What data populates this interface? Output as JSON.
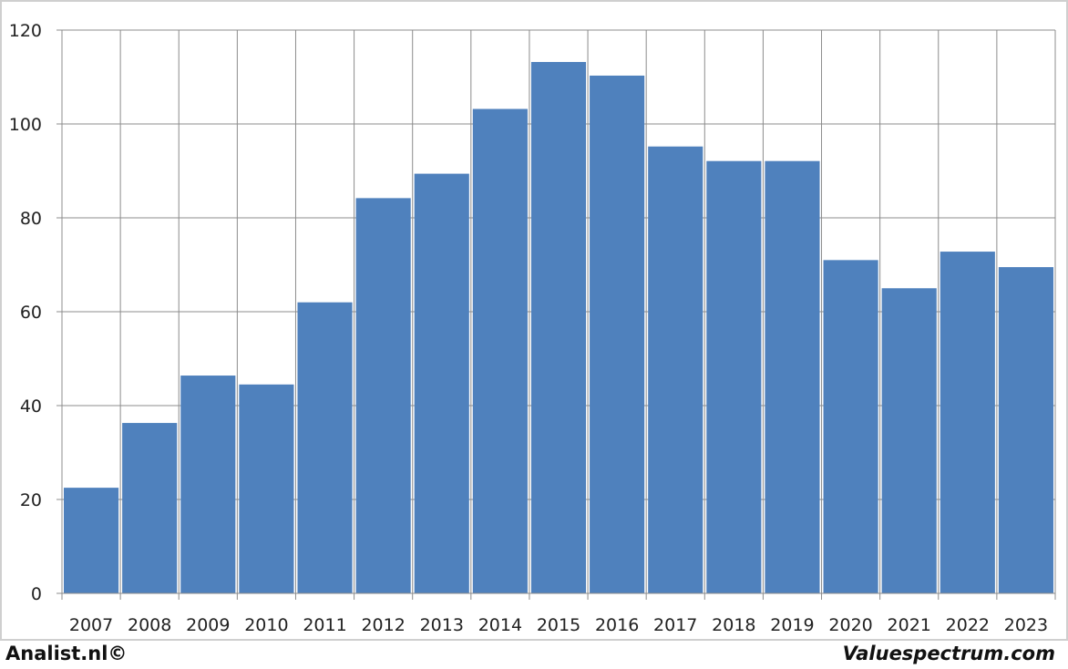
{
  "chart_data": {
    "type": "bar",
    "categories": [
      "2007",
      "2008",
      "2009",
      "2010",
      "2011",
      "2012",
      "2013",
      "2014",
      "2015",
      "2016",
      "2017",
      "2018",
      "2019",
      "2020",
      "2021",
      "2022",
      "2023"
    ],
    "values": [
      22.5,
      36.3,
      46.4,
      44.5,
      62.0,
      84.2,
      89.4,
      103.2,
      113.2,
      110.3,
      95.2,
      92.1,
      92.1,
      71.0,
      65.0,
      72.8,
      69.5
    ],
    "yticks": [
      "0",
      "20",
      "40",
      "60",
      "80",
      "100",
      "120"
    ],
    "ylim": [
      0,
      120
    ],
    "grid": true,
    "bar_color": "#4f81bd",
    "title": "",
    "xlabel": "",
    "ylabel": ""
  },
  "footer": {
    "left": "Analist.nl©",
    "right": "Valuespectrum.com"
  }
}
